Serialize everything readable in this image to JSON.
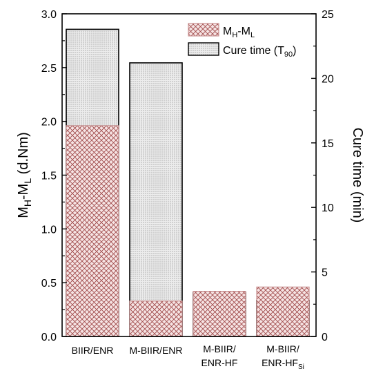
{
  "chart_data": {
    "type": "bar",
    "categories": [
      {
        "line1": "BIIR/ENR",
        "line2": "",
        "sub": ""
      },
      {
        "line1": "M-BIIR/ENR",
        "line2": "",
        "sub": ""
      },
      {
        "line1": "M-BIIR/",
        "line2": "ENR-HF",
        "sub": ""
      },
      {
        "line1": "M-BIIR/",
        "line2": "ENR-HF",
        "sub": "Si"
      }
    ],
    "series": [
      {
        "name": "MH-ML",
        "name_parts": {
          "a": "M",
          "a_sub": "H",
          "mid": "-M",
          "b_sub": "L"
        },
        "axis": "left",
        "pattern": "crosshatch",
        "color": "#a05050",
        "fill": "#f2dada",
        "values": [
          1.96,
          0.33,
          0.42,
          0.46
        ]
      },
      {
        "name": "Cure time (T90)",
        "name_parts": {
          "text": "Cure time (T",
          "sub": "90",
          "tail": ")"
        },
        "axis": "right",
        "pattern": "dots",
        "color": "#000000",
        "fill": "#e6e6e6",
        "values": [
          23.8,
          21.2,
          3.4,
          2.8
        ]
      }
    ],
    "left_axis": {
      "label_parts": {
        "a": "M",
        "a_sub": "H",
        "mid": "-M",
        "b_sub": "L",
        "tail": " (d.Nm)"
      },
      "ylim": [
        0,
        3.0
      ],
      "ticks": [
        "0.0",
        "0.5",
        "1.0",
        "1.5",
        "2.0",
        "2.5",
        "3.0"
      ],
      "tick_values": [
        0,
        0.5,
        1.0,
        1.5,
        2.0,
        2.5,
        3.0
      ]
    },
    "right_axis": {
      "label": "Cure time (min)",
      "ylim": [
        0,
        25
      ],
      "ticks": [
        "0",
        "5",
        "10",
        "15",
        "20",
        "25"
      ],
      "tick_values": [
        0,
        5,
        10,
        15,
        20,
        25
      ]
    },
    "legend_position": "top-right",
    "grid": false
  }
}
